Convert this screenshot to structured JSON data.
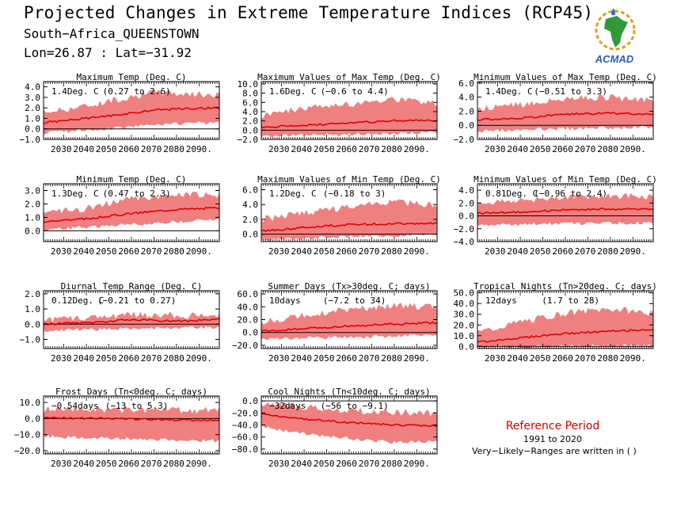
{
  "header": {
    "title": "Projected Changes in Extreme Temperature Indices (RCP45)",
    "subtitle": "South−Africa_QUEENSTOWN",
    "coords": "Lon=26.87 : Lat=−31.92",
    "logo_text": "ACMAD"
  },
  "reference": {
    "title": "Reference Period",
    "years": "1991 to 2020",
    "note": "Very−Likely−Ranges are written in ( )"
  },
  "colors": {
    "band": "#f08080",
    "line": "#e00000",
    "ref_title": "#d40000"
  },
  "chart_data": [
    {
      "type": "area",
      "title": "Maximum Temp (Deg. C)",
      "change": "1.4Deg. C",
      "range": "(0.27 to 2.6)",
      "x_start": 2021,
      "x_end": 2099,
      "xticks": [
        "2030.",
        "2040.",
        "2050.",
        "2060.",
        "2070.",
        "2080.",
        "2090."
      ],
      "ylim": [
        -1.0,
        4.5
      ],
      "yticks": [
        -1.0,
        0.0,
        1.0,
        2.0,
        3.0,
        4.0
      ],
      "grid": false,
      "mean_knots": [
        [
          2021,
          0.6
        ],
        [
          2040,
          1.0
        ],
        [
          2060,
          1.5
        ],
        [
          2070,
          1.8
        ],
        [
          2080,
          1.9
        ],
        [
          2099,
          2.0
        ]
      ],
      "lower_knots": [
        [
          2021,
          -0.2
        ],
        [
          2050,
          0.2
        ],
        [
          2070,
          0.6
        ],
        [
          2099,
          0.8
        ]
      ],
      "upper_knots": [
        [
          2021,
          1.5
        ],
        [
          2040,
          2.1
        ],
        [
          2060,
          3.0
        ],
        [
          2070,
          3.4
        ],
        [
          2099,
          3.1
        ]
      ]
    },
    {
      "type": "area",
      "title": "Maximum Values of Max Temp (Deg. C)",
      "change": "1.6Deg. C",
      "range": "(−0.6 to 4.4)",
      "x_start": 2021,
      "x_end": 2099,
      "xticks": [
        "2030.",
        "2040.",
        "2050.",
        "2060.",
        "2070.",
        "2080.",
        "2090."
      ],
      "ylim": [
        -2.0,
        10.5
      ],
      "yticks": [
        -2.0,
        0.0,
        2.0,
        4.0,
        6.0,
        8.0,
        10.0
      ],
      "grid": false,
      "mean_knots": [
        [
          2021,
          0.7
        ],
        [
          2040,
          1.0
        ],
        [
          2060,
          1.6
        ],
        [
          2080,
          2.0
        ],
        [
          2099,
          2.1
        ]
      ],
      "lower_knots": [
        [
          2021,
          -1.0
        ],
        [
          2050,
          -0.6
        ],
        [
          2099,
          -0.2
        ]
      ],
      "upper_knots": [
        [
          2021,
          3.0
        ],
        [
          2040,
          4.5
        ],
        [
          2060,
          5.5
        ],
        [
          2080,
          6.5
        ],
        [
          2099,
          5.5
        ]
      ]
    },
    {
      "type": "area",
      "title": "Minimum Values of Max Temp (Deg. C)",
      "change": "1.4Deg. C",
      "range": "(−0.51 to 3.3)",
      "x_start": 2021,
      "x_end": 2099,
      "xticks": [
        "2030.",
        "2040.",
        "2050.",
        "2060.",
        "2070.",
        "2080.",
        "2090."
      ],
      "ylim": [
        -2.0,
        6.2
      ],
      "yticks": [
        -2.0,
        0.0,
        2.0,
        4.0,
        6.0
      ],
      "grid": false,
      "mean_knots": [
        [
          2021,
          0.8
        ],
        [
          2040,
          1.0
        ],
        [
          2060,
          1.6
        ],
        [
          2080,
          1.7
        ],
        [
          2099,
          1.6
        ]
      ],
      "lower_knots": [
        [
          2021,
          -0.6
        ],
        [
          2050,
          -0.3
        ],
        [
          2099,
          0.0
        ]
      ],
      "upper_knots": [
        [
          2021,
          2.2
        ],
        [
          2040,
          2.8
        ],
        [
          2060,
          3.6
        ],
        [
          2080,
          3.8
        ],
        [
          2099,
          3.3
        ]
      ]
    },
    {
      "type": "area",
      "title": "Minimum Temp (Deg. C)",
      "change": "1.3Deg. C",
      "range": "(0.47 to 2.3)",
      "x_start": 2021,
      "x_end": 2099,
      "xticks": [
        "2030.",
        "2040.",
        "2050.",
        "2060.",
        "2070.",
        "2080.",
        "2090."
      ],
      "ylim": [
        -0.8,
        3.5
      ],
      "yticks": [
        0.0,
        1.0,
        2.0,
        3.0
      ],
      "grid": false,
      "mean_knots": [
        [
          2021,
          0.7
        ],
        [
          2040,
          0.9
        ],
        [
          2060,
          1.3
        ],
        [
          2080,
          1.6
        ],
        [
          2099,
          1.7
        ]
      ],
      "lower_knots": [
        [
          2021,
          0.2
        ],
        [
          2050,
          0.5
        ],
        [
          2099,
          1.0
        ]
      ],
      "upper_knots": [
        [
          2021,
          1.3
        ],
        [
          2040,
          1.6
        ],
        [
          2060,
          2.3
        ],
        [
          2080,
          2.6
        ],
        [
          2099,
          2.6
        ]
      ]
    },
    {
      "type": "area",
      "title": "Maximum Values of Min Temp (Deg. C)",
      "change": "1.2Deg. C",
      "range": "(−0.18 to 3)",
      "x_start": 2021,
      "x_end": 2099,
      "xticks": [
        "2030.",
        "2040.",
        "2050.",
        "2060.",
        "2070.",
        "2080.",
        "2090."
      ],
      "ylim": [
        -1.0,
        6.8
      ],
      "yticks": [
        0.0,
        2.0,
        4.0,
        6.0
      ],
      "grid": false,
      "mean_knots": [
        [
          2021,
          0.4
        ],
        [
          2040,
          0.9
        ],
        [
          2060,
          1.3
        ],
        [
          2080,
          1.4
        ],
        [
          2099,
          1.5
        ]
      ],
      "lower_knots": [
        [
          2021,
          -0.6
        ],
        [
          2050,
          -0.2
        ],
        [
          2099,
          0.2
        ]
      ],
      "upper_knots": [
        [
          2021,
          1.8
        ],
        [
          2040,
          2.8
        ],
        [
          2060,
          3.5
        ],
        [
          2080,
          4.2
        ],
        [
          2099,
          3.8
        ]
      ]
    },
    {
      "type": "area",
      "title": "Minimum Values of Min Temp (Deg. C)",
      "change": "0.81Deg. C",
      "range": "(−0.96 to 2.4)",
      "x_start": 2021,
      "x_end": 2099,
      "xticks": [
        "2030.",
        "2040.",
        "2050.",
        "2060.",
        "2070.",
        "2080.",
        "2090."
      ],
      "ylim": [
        -4.0,
        5.0
      ],
      "yticks": [
        -4.0,
        -2.0,
        0.0,
        2.0,
        4.0
      ],
      "grid": false,
      "mean_knots": [
        [
          2021,
          0.4
        ],
        [
          2040,
          0.6
        ],
        [
          2060,
          0.9
        ],
        [
          2080,
          1.1
        ],
        [
          2099,
          1.0
        ]
      ],
      "lower_knots": [
        [
          2021,
          -1.2
        ],
        [
          2050,
          -1.0
        ],
        [
          2099,
          -0.8
        ]
      ],
      "upper_knots": [
        [
          2021,
          1.8
        ],
        [
          2040,
          2.2
        ],
        [
          2060,
          2.8
        ],
        [
          2080,
          3.0
        ],
        [
          2099,
          2.8
        ]
      ]
    },
    {
      "type": "area",
      "title": "Diurnal Temp Range (Deg. C)",
      "change": "0.12Deg. C",
      "range": "(−0.21 to 0.27)",
      "x_start": 2021,
      "x_end": 2099,
      "xticks": [
        "2030.",
        "2040.",
        "2050.",
        "2060.",
        "2070.",
        "2080.",
        "2090."
      ],
      "ylim": [
        -1.6,
        2.2
      ],
      "yticks": [
        -1.0,
        0.0,
        1.0,
        2.0
      ],
      "grid": false,
      "mean_knots": [
        [
          2021,
          0.0
        ],
        [
          2040,
          0.1
        ],
        [
          2060,
          0.3
        ],
        [
          2080,
          0.2
        ],
        [
          2099,
          0.3
        ]
      ],
      "lower_knots": [
        [
          2021,
          -0.3
        ],
        [
          2050,
          -0.2
        ],
        [
          2099,
          -0.1
        ]
      ],
      "upper_knots": [
        [
          2021,
          0.2
        ],
        [
          2040,
          0.3
        ],
        [
          2060,
          0.6
        ],
        [
          2080,
          0.5
        ],
        [
          2099,
          0.5
        ]
      ]
    },
    {
      "type": "area",
      "title": "Summer Days (Tx>30deg. C; days)",
      "change": "10days",
      "range": "(−7.2 to 34)",
      "x_start": 2021,
      "x_end": 2099,
      "xticks": [
        "2030.",
        "2040.",
        "2050.",
        "2060.",
        "2070.",
        "2080.",
        "2090."
      ],
      "ylim": [
        -25,
        65
      ],
      "yticks": [
        -20.0,
        0.0,
        20.0,
        40.0,
        60.0
      ],
      "grid": false,
      "mean_knots": [
        [
          2021,
          2
        ],
        [
          2040,
          6
        ],
        [
          2060,
          10
        ],
        [
          2080,
          13
        ],
        [
          2099,
          15
        ]
      ],
      "lower_knots": [
        [
          2021,
          -8
        ],
        [
          2050,
          -5
        ],
        [
          2099,
          -2
        ]
      ],
      "upper_knots": [
        [
          2021,
          15
        ],
        [
          2040,
          25
        ],
        [
          2060,
          35
        ],
        [
          2080,
          40
        ],
        [
          2099,
          38
        ]
      ]
    },
    {
      "type": "area",
      "title": "Tropical Nights (Tn>20deg. C; days)",
      "change": "12days",
      "range": "(1.7 to 28)",
      "x_start": 2021,
      "x_end": 2099,
      "xticks": [
        "2030.",
        "2040.",
        "2050.",
        "2060.",
        "2070.",
        "2080.",
        "2090."
      ],
      "ylim": [
        -2,
        52
      ],
      "yticks": [
        0.0,
        10.0,
        20.0,
        30.0,
        40.0,
        50.0
      ],
      "grid": false,
      "mean_knots": [
        [
          2021,
          4
        ],
        [
          2040,
          8
        ],
        [
          2060,
          12
        ],
        [
          2080,
          14
        ],
        [
          2099,
          16
        ]
      ],
      "lower_knots": [
        [
          2021,
          1
        ],
        [
          2050,
          1.5
        ],
        [
          2099,
          2.5
        ]
      ],
      "upper_knots": [
        [
          2021,
          12
        ],
        [
          2040,
          22
        ],
        [
          2060,
          30
        ],
        [
          2080,
          34
        ],
        [
          2099,
          30
        ]
      ]
    },
    {
      "type": "area",
      "title": "Frost Days (Tn<0deg. C; days)",
      "change": "−0.54days",
      "range": "(−13 to 5.3)",
      "x_start": 2021,
      "x_end": 2099,
      "xticks": [
        "2030.",
        "2040.",
        "2050.",
        "2060.",
        "2070.",
        "2080.",
        "2090."
      ],
      "ylim": [
        -22,
        14
      ],
      "yticks": [
        -20.0,
        -10.0,
        0.0,
        10.0
      ],
      "grid": false,
      "mean_knots": [
        [
          2021,
          0.5
        ],
        [
          2050,
          0.0
        ],
        [
          2080,
          -0.8
        ],
        [
          2099,
          -1.2
        ]
      ],
      "lower_knots": [
        [
          2021,
          -10
        ],
        [
          2050,
          -11
        ],
        [
          2099,
          -13
        ]
      ],
      "upper_knots": [
        [
          2021,
          5
        ],
        [
          2050,
          5
        ],
        [
          2099,
          4.5
        ]
      ]
    },
    {
      "type": "area",
      "title": "Cool Nights (Tn<10deg. C; days)",
      "change": "−32days",
      "range": "(−56 to −9.1)",
      "x_start": 2021,
      "x_end": 2099,
      "xticks": [
        "2030.",
        "2040.",
        "2050.",
        "2060.",
        "2070.",
        "2080.",
        "2090."
      ],
      "ylim": [
        -88,
        8
      ],
      "yticks": [
        -80.0,
        -60.0,
        -40.0,
        -20.0,
        0.0
      ],
      "grid": false,
      "mean_knots": [
        [
          2021,
          -22
        ],
        [
          2040,
          -30
        ],
        [
          2060,
          -36
        ],
        [
          2080,
          -40
        ],
        [
          2099,
          -42
        ]
      ],
      "lower_knots": [
        [
          2021,
          -40
        ],
        [
          2040,
          -52
        ],
        [
          2060,
          -60
        ],
        [
          2080,
          -66
        ],
        [
          2099,
          -64
        ]
      ],
      "upper_knots": [
        [
          2021,
          -5
        ],
        [
          2040,
          -12
        ],
        [
          2060,
          -18
        ],
        [
          2080,
          -20
        ],
        [
          2099,
          -22
        ]
      ]
    }
  ]
}
